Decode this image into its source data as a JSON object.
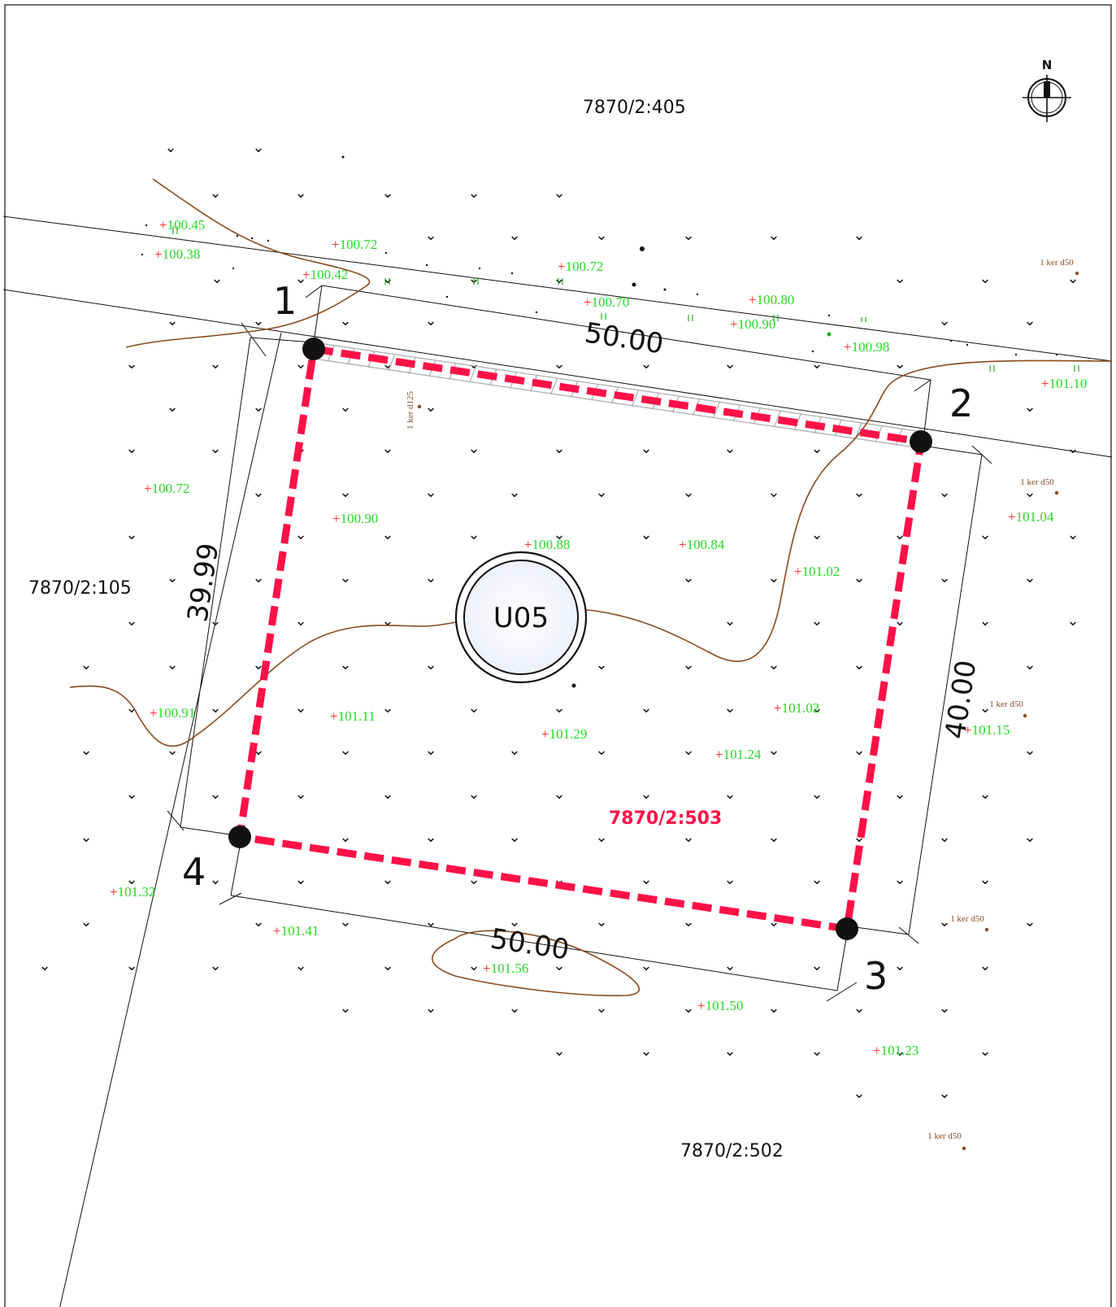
{
  "colors": {
    "boundary": "#ff1148",
    "contour": "#8a4a1c",
    "elevation": "#22dd22",
    "elevation_marker": "#ff2222",
    "tree_label": "#8a4a22",
    "badge_fill": "#eceefa"
  },
  "north_label": "N",
  "parcels": {
    "north": "7870/2:405",
    "west": "7870/2:105",
    "main": "7870/2:503",
    "south": "7870/2:502"
  },
  "badge_label": "U05",
  "corners": [
    "1",
    "2",
    "3",
    "4"
  ],
  "dimensions": {
    "top": "50.00",
    "right": "40.00",
    "bottom": "50.00",
    "left": "39.99"
  },
  "elevations": [
    "100.45",
    "100.38",
    "100.72",
    "100.42",
    "100.72",
    "100.70",
    "100.80",
    "100.90",
    "100.98",
    "101.10",
    "100.72",
    "100.90",
    "100.88",
    "100.84",
    "101.02",
    "101.04",
    "100.91",
    "101.11",
    "101.29",
    "101.02",
    "101.24",
    "101.15",
    "101.32",
    "101.41",
    "101.56",
    "101.50",
    "101.23"
  ],
  "tree_labels": [
    "1 ker d50",
    "1 ker d125",
    "1 ker d50",
    "1 ker d50",
    "1 ker d50",
    "1 ker d50"
  ],
  "grass_symbol": "⌄"
}
